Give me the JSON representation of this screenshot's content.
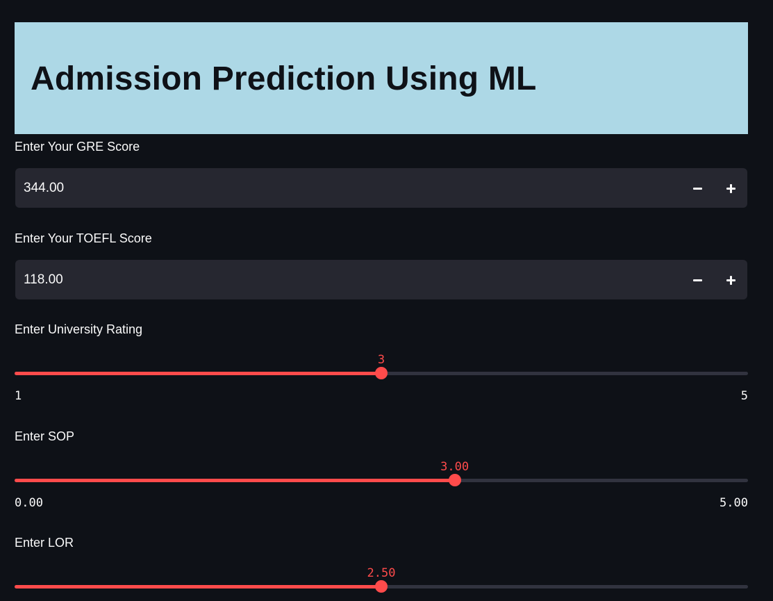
{
  "header": {
    "title": "Admission Prediction Using ML",
    "background": "#add8e6"
  },
  "gre": {
    "label": "Enter Your GRE Score",
    "value": "344.00",
    "decrement_icon": "minus-icon",
    "increment_icon": "plus-icon"
  },
  "toefl": {
    "label": "Enter Your TOEFL Score",
    "value": "118.00",
    "decrement_icon": "minus-icon",
    "increment_icon": "plus-icon"
  },
  "university_rating": {
    "label": "Enter University Rating",
    "value": "3",
    "min": "1",
    "max": "5",
    "numeric": {
      "value": 3,
      "min": 1,
      "max": 5
    }
  },
  "sop": {
    "label": "Enter SOP",
    "value": "3.00",
    "min": "0.00",
    "max": "5.00",
    "numeric": {
      "value": 3.0,
      "min": 0,
      "max": 5
    }
  },
  "lor": {
    "label": "Enter LOR",
    "value": "2.50",
    "numeric": {
      "value": 2.5,
      "min": 0,
      "max": 5
    }
  },
  "colors": {
    "background": "#0e1117",
    "input_background": "#262730",
    "accent": "#ff4b4b",
    "track": "#31333f",
    "text": "#fafafa"
  }
}
